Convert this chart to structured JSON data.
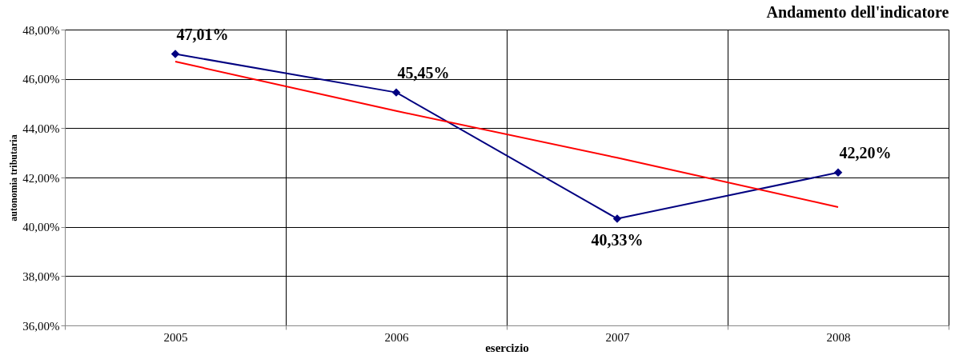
{
  "chart_data": {
    "type": "line",
    "title": "Andamento dell'indicatore",
    "xlabel": "esercizio",
    "ylabel": "autonomia tributaria",
    "categories": [
      "2005",
      "2006",
      "2007",
      "2008"
    ],
    "series": [
      {
        "color": "#000080",
        "values": [
          47.01,
          45.45,
          40.33,
          42.2
        ],
        "value_labels": [
          "47,01%",
          "45,45%",
          "40,33%",
          "42,20%"
        ],
        "marker": "diamond"
      },
      {
        "type": "line",
        "color": "#ff0000",
        "values": [
          46.7,
          44.7,
          42.8,
          40.8
        ],
        "marker": "none"
      }
    ],
    "ylim": [
      36,
      48
    ],
    "yticks": [
      {
        "value": 36,
        "label": "36,00%"
      },
      {
        "value": 38,
        "label": "38,00%"
      },
      {
        "value": 40,
        "label": "40,00%"
      },
      {
        "value": 42,
        "label": "42,00%"
      },
      {
        "value": 44,
        "label": "44,00%"
      },
      {
        "value": 46,
        "label": "46,00%"
      },
      {
        "value": 48,
        "label": "48,00%"
      }
    ],
    "grid": true
  }
}
